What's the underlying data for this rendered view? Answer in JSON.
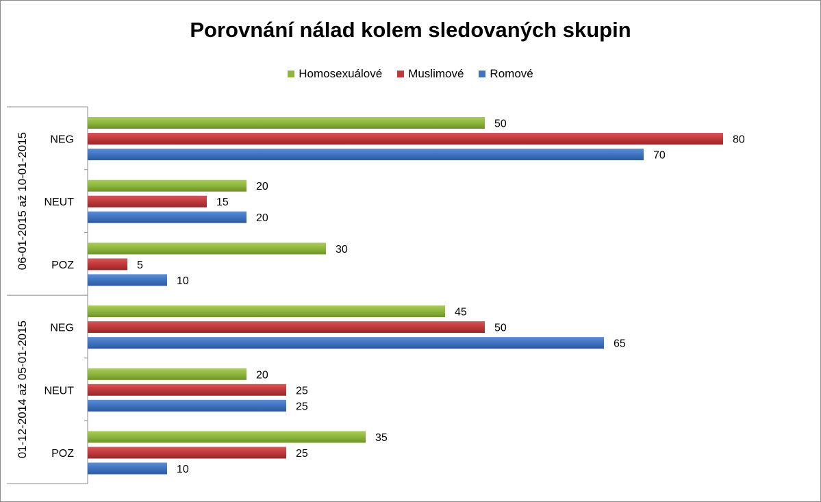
{
  "chart_data": {
    "type": "bar",
    "orientation": "horizontal",
    "title": "Porovnání nálad kolem sledovaných skupin",
    "legend_position": "top",
    "grid": false,
    "xlim": [
      0,
      80
    ],
    "groups": [
      {
        "label": "06-01-2015 až 10-01-2015",
        "categories": [
          {
            "label": "NEG",
            "values": [
              50,
              80,
              70
            ]
          },
          {
            "label": "NEUT",
            "values": [
              20,
              15,
              20
            ]
          },
          {
            "label": "POZ",
            "values": [
              30,
              5,
              10
            ]
          }
        ]
      },
      {
        "label": "01-12-2014 až 05-01-2015",
        "categories": [
          {
            "label": "NEG",
            "values": [
              45,
              50,
              65
            ]
          },
          {
            "label": "NEUT",
            "values": [
              20,
              25,
              25
            ]
          },
          {
            "label": "POZ",
            "values": [
              35,
              25,
              10
            ]
          }
        ]
      }
    ],
    "series": [
      {
        "name": "Homosexuálové",
        "color": "#8db53c"
      },
      {
        "name": "Muslimové",
        "color": "#c0393b"
      },
      {
        "name": "Romové",
        "color": "#3f73c0"
      }
    ]
  }
}
